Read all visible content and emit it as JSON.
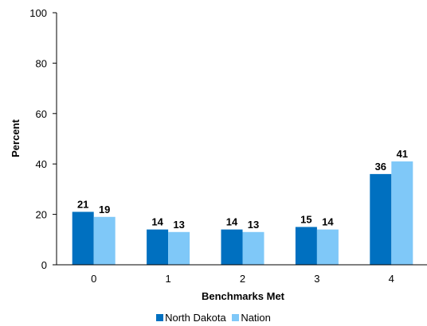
{
  "chart_data": {
    "type": "bar",
    "title": "",
    "xlabel": "Benchmarks Met",
    "ylabel": "Percent",
    "ylim": [
      0,
      100
    ],
    "yticks": [
      "0",
      "20",
      "40",
      "60",
      "80",
      "100"
    ],
    "categories": [
      "0",
      "1",
      "2",
      "3",
      "4"
    ],
    "series": [
      {
        "name": "North Dakota",
        "color": "#0070c0",
        "values": [
          21,
          14,
          14,
          15,
          36
        ]
      },
      {
        "name": "Nation",
        "color": "#7fc8f8",
        "values": [
          19,
          13,
          13,
          14,
          41
        ]
      }
    ],
    "grid": false,
    "legend_position": "bottom"
  }
}
